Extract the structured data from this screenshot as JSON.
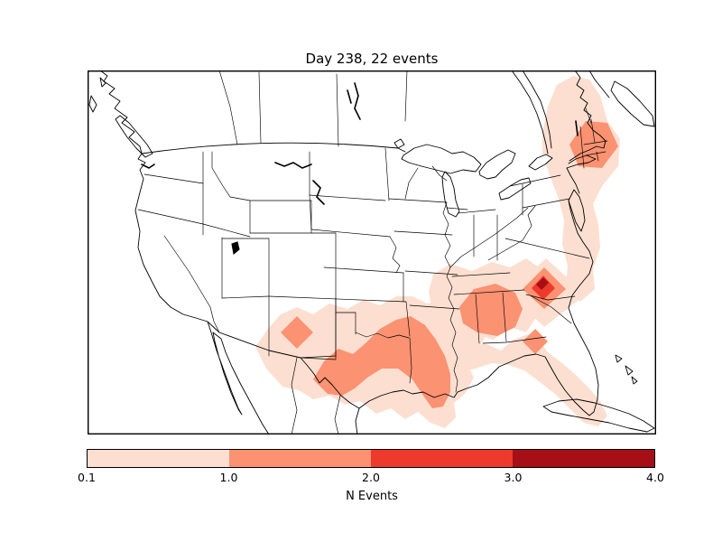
{
  "figure": {
    "title": "Day 238, 22 events",
    "day": 238,
    "event_count": 22,
    "background": "#ffffff"
  },
  "chart_data": {
    "type": "heatmap",
    "subtype": "filled-contour map over North America",
    "title": "Day 238, 22 events",
    "map_extent": "Conterminous United States with southern Canada, northern Mexico, Baja California, Gulf of Mexico, Florida, Cuba and the Bahamas; state and province borders drawn",
    "colorbar": {
      "label": "N Events",
      "orientation": "horizontal",
      "ticks": [
        "0.1",
        "1.0",
        "2.0",
        "3.0",
        "4.0"
      ],
      "levels": [
        0.1,
        1.0,
        2.0,
        3.0,
        4.0
      ],
      "colors": [
        "#fcdfd0",
        "#fb9272",
        "#ee3a2c",
        "#a50f15"
      ]
    },
    "regions": [
      {
        "name": "New England (VT/NH/MA/CT, Boston area)",
        "n_events": "1-2",
        "surround": "0.1-1 halo Maine to New Jersey"
      },
      {
        "name": "Mid-Atlantic coast (Delmarva, eastern Virginia / North Carolina)",
        "n_events": "0.1-1"
      },
      {
        "name": "South Carolina / Georgia border hotspot",
        "n_events": "2-3 core with small 3-4 center, 1-2 and 0.1-1 halos"
      },
      {
        "name": "Alabama and western Georgia",
        "n_events": "1-2",
        "surround": "0.1-1 over Tennessee/Mississippi/Georgia"
      },
      {
        "name": "Gulf coast strip Louisiana to Florida peninsula",
        "n_events": "0.1-1"
      },
      {
        "name": "Florida panhandle coast (Apalachicola)",
        "n_events": "1-2"
      },
      {
        "name": "Central Texas boomerang band (Big Bend to northeast Texas)",
        "n_events": "1-2"
      },
      {
        "name": "Eastern New Mexico",
        "n_events": "1-2",
        "surround": "0.1-1 across southern NM, Texas, Louisiana"
      }
    ],
    "legend_position": "bottom",
    "grid": false
  }
}
